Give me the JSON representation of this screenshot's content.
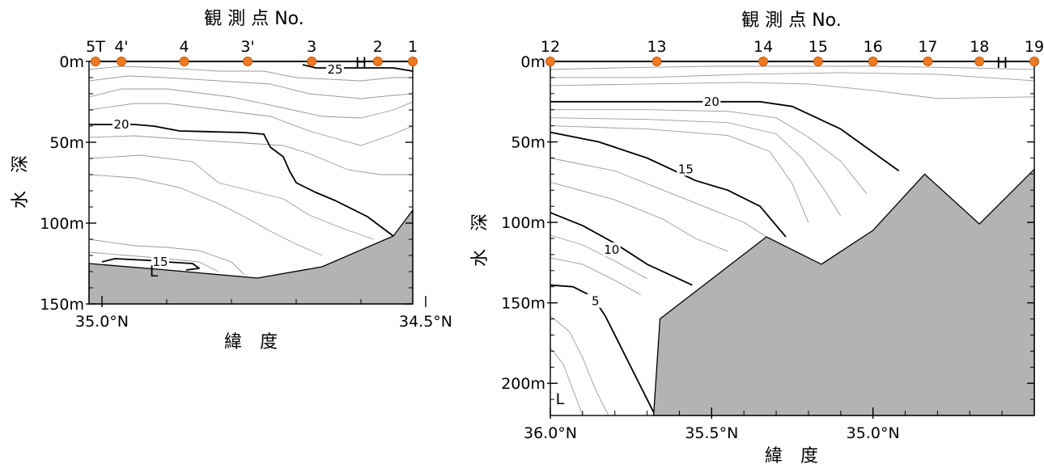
{
  "chart_data": [
    {
      "type": "contour-section",
      "top_axis_title": "観 測 点 No.",
      "xlabel": "緯　度",
      "ylabel": "水　深",
      "xlim": [
        35.02,
        34.52
      ],
      "ylim": [
        0,
        150
      ],
      "x_ticks": [
        {
          "value": 35.0,
          "label": "35.0°N"
        },
        {
          "value": 34.5,
          "label": "34.5°N"
        }
      ],
      "y_ticks": [
        {
          "value": 0,
          "label": "0m"
        },
        {
          "value": 50,
          "label": "50m"
        },
        {
          "value": 100,
          "label": "100m"
        },
        {
          "value": 150,
          "label": "150m"
        }
      ],
      "stations": [
        {
          "label": "5T",
          "lat": 35.01
        },
        {
          "label": "4'",
          "lat": 34.97
        },
        {
          "label": "4",
          "lat": 34.873
        },
        {
          "label": "3'",
          "lat": 34.775
        },
        {
          "label": "3",
          "lat": 34.676
        },
        {
          "label": "2",
          "lat": 34.574
        },
        {
          "label": "1",
          "lat": 34.52
        }
      ],
      "seabed": [
        [
          35.02,
          125
        ],
        [
          34.9,
          129
        ],
        [
          34.76,
          134
        ],
        [
          34.66,
          127
        ],
        [
          34.55,
          108
        ],
        [
          34.52,
          92
        ]
      ],
      "contours": [
        {
          "level": 25,
          "label": "25",
          "label_at": [
            34.64,
            5
          ],
          "points": [
            [
              34.69,
              2
            ],
            [
              34.67,
              4
            ],
            [
              34.6,
              4
            ],
            [
              34.55,
              4
            ],
            [
              34.52,
              6
            ]
          ]
        },
        {
          "level": 20,
          "label": "20",
          "label_at": [
            34.97,
            39
          ],
          "points": [
            [
              35.02,
              39
            ],
            [
              34.95,
              39
            ],
            [
              34.92,
              40
            ],
            [
              34.88,
              43
            ],
            [
              34.78,
              44
            ],
            [
              34.75,
              45
            ],
            [
              34.74,
              53
            ],
            [
              34.72,
              59
            ],
            [
              34.71,
              68
            ],
            [
              34.7,
              75
            ],
            [
              34.67,
              81
            ],
            [
              34.64,
              86
            ],
            [
              34.59,
              96
            ],
            [
              34.55,
              108
            ]
          ]
        },
        {
          "level": 15,
          "label": "15",
          "label_at": [
            34.91,
            124
          ],
          "points": [
            [
              35.0,
              124
            ],
            [
              34.98,
              122
            ],
            [
              34.93,
              123
            ],
            [
              34.9,
              124
            ],
            [
              34.86,
              125
            ],
            [
              34.85,
              128
            ],
            [
              34.87,
              129
            ]
          ]
        }
      ],
      "thin_contours": [
        [
          [
            35.02,
            5
          ],
          [
            34.97,
            3
          ],
          [
            34.9,
            4
          ],
          [
            34.82,
            6
          ],
          [
            34.75,
            6
          ],
          [
            34.7,
            10
          ],
          [
            34.6,
            12
          ],
          [
            34.55,
            10
          ],
          [
            34.52,
            10
          ]
        ],
        [
          [
            35.02,
            12
          ],
          [
            34.96,
            9
          ],
          [
            34.9,
            10
          ],
          [
            34.82,
            12
          ],
          [
            34.74,
            14
          ],
          [
            34.68,
            20
          ],
          [
            34.6,
            23
          ],
          [
            34.55,
            21
          ],
          [
            34.52,
            20
          ]
        ],
        [
          [
            35.02,
            22
          ],
          [
            34.97,
            17
          ],
          [
            34.9,
            17
          ],
          [
            34.8,
            22
          ],
          [
            34.74,
            27
          ],
          [
            34.66,
            34
          ],
          [
            34.6,
            35
          ],
          [
            34.55,
            30
          ],
          [
            34.52,
            25
          ]
        ],
        [
          [
            35.02,
            30
          ],
          [
            34.95,
            26
          ],
          [
            34.9,
            26
          ],
          [
            34.82,
            30
          ],
          [
            34.74,
            34
          ],
          [
            34.68,
            43
          ],
          [
            34.6,
            52
          ],
          [
            34.55,
            45
          ],
          [
            34.52,
            40
          ]
        ],
        [
          [
            35.02,
            47
          ],
          [
            34.95,
            46
          ],
          [
            34.88,
            48
          ],
          [
            34.8,
            50
          ],
          [
            34.72,
            52
          ],
          [
            34.68,
            57
          ],
          [
            34.62,
            67
          ],
          [
            34.57,
            70
          ],
          [
            34.52,
            70
          ]
        ],
        [
          [
            35.02,
            60
          ],
          [
            34.94,
            58
          ],
          [
            34.86,
            62
          ],
          [
            34.82,
            75
          ],
          [
            34.77,
            80
          ],
          [
            34.72,
            85
          ],
          [
            34.68,
            95
          ],
          [
            34.63,
            103
          ],
          [
            34.58,
            110
          ]
        ],
        [
          [
            35.02,
            70
          ],
          [
            34.95,
            72
          ],
          [
            34.88,
            78
          ],
          [
            34.82,
            88
          ],
          [
            34.78,
            96
          ],
          [
            34.74,
            105
          ],
          [
            34.7,
            113
          ],
          [
            34.66,
            120
          ]
        ],
        [
          [
            35.02,
            110
          ],
          [
            34.95,
            114
          ],
          [
            34.9,
            115
          ],
          [
            34.85,
            117
          ],
          [
            34.8,
            124
          ],
          [
            34.78,
            132
          ]
        ],
        [
          [
            35.02,
            118
          ],
          [
            34.96,
            120
          ],
          [
            34.9,
            122
          ],
          [
            34.85,
            124
          ],
          [
            34.82,
            130
          ]
        ]
      ],
      "markers": [
        {
          "text": "H",
          "lat": 34.6,
          "depth": 1
        },
        {
          "text": "L",
          "lat": 34.92,
          "depth": 130
        }
      ]
    },
    {
      "type": "contour-section",
      "top_axis_title": "観 測 点 No.",
      "xlabel": "緯　度",
      "ylabel": "水　深",
      "xlim": [
        36.0,
        34.5
      ],
      "ylim": [
        0,
        220
      ],
      "x_ticks": [
        {
          "value": 36.0,
          "label": "36.0°N"
        },
        {
          "value": 35.5,
          "label": "35.5°N"
        },
        {
          "value": 35.0,
          "label": "35.0°N"
        }
      ],
      "y_ticks": [
        {
          "value": 0,
          "label": "0m"
        },
        {
          "value": 50,
          "label": "50m"
        },
        {
          "value": 100,
          "label": "100m"
        },
        {
          "value": 150,
          "label": "150m"
        },
        {
          "value": 200,
          "label": "200m"
        }
      ],
      "stations": [
        {
          "label": "12",
          "lat": 36.0
        },
        {
          "label": "13",
          "lat": 35.67
        },
        {
          "label": "14",
          "lat": 35.34
        },
        {
          "label": "15",
          "lat": 35.17
        },
        {
          "label": "16",
          "lat": 35.0
        },
        {
          "label": "17",
          "lat": 34.83
        },
        {
          "label": "18",
          "lat": 34.67
        },
        {
          "label": "19",
          "lat": 34.5
        }
      ],
      "seabed": [
        [
          35.68,
          220
        ],
        [
          35.66,
          160
        ],
        [
          35.33,
          109
        ],
        [
          35.16,
          126
        ],
        [
          35.0,
          105
        ],
        [
          34.84,
          70
        ],
        [
          34.67,
          101
        ],
        [
          34.5,
          67
        ]
      ],
      "contours": [
        {
          "level": 20,
          "label": "20",
          "label_at": [
            35.5,
            25
          ],
          "points": [
            [
              36.0,
              25
            ],
            [
              35.7,
              25
            ],
            [
              35.5,
              25
            ],
            [
              35.35,
              25
            ],
            [
              35.25,
              28
            ],
            [
              35.1,
              42
            ],
            [
              34.92,
              68
            ]
          ]
        },
        {
          "level": 15,
          "label": "15",
          "label_at": [
            35.58,
            67
          ],
          "points": [
            [
              36.0,
              44
            ],
            [
              35.85,
              50
            ],
            [
              35.7,
              60
            ],
            [
              35.55,
              74
            ],
            [
              35.45,
              80
            ],
            [
              35.35,
              90
            ],
            [
              35.27,
              109
            ]
          ]
        },
        {
          "level": 10,
          "label": "10",
          "label_at": [
            35.81,
            117
          ],
          "points": [
            [
              36.0,
              94
            ],
            [
              35.9,
              102
            ],
            [
              35.8,
              113
            ],
            [
              35.7,
              126
            ],
            [
              35.56,
              139
            ]
          ]
        },
        {
          "level": 5,
          "label": "5",
          "label_at": [
            35.86,
            149
          ],
          "points": [
            [
              36.0,
              139
            ],
            [
              35.93,
              140
            ],
            [
              35.87,
              146
            ],
            [
              35.83,
              158
            ],
            [
              35.77,
              182
            ],
            [
              35.68,
              218
            ]
          ]
        }
      ],
      "thin_contours": [
        [
          [
            36.0,
            5
          ],
          [
            35.8,
            4
          ],
          [
            35.5,
            3
          ],
          [
            35.2,
            3
          ],
          [
            35.0,
            3
          ],
          [
            34.7,
            4
          ],
          [
            34.5,
            5
          ]
        ],
        [
          [
            36.0,
            10
          ],
          [
            35.7,
            10
          ],
          [
            35.4,
            8
          ],
          [
            35.1,
            7
          ],
          [
            34.8,
            8
          ],
          [
            34.5,
            12
          ]
        ],
        [
          [
            36.0,
            15
          ],
          [
            35.7,
            14
          ],
          [
            35.4,
            13
          ],
          [
            35.2,
            14
          ],
          [
            35.0,
            18
          ],
          [
            34.8,
            23
          ],
          [
            34.5,
            22
          ]
        ],
        [
          [
            36.0,
            30
          ],
          [
            35.7,
            30
          ],
          [
            35.45,
            31
          ],
          [
            35.3,
            35
          ],
          [
            35.2,
            47
          ],
          [
            35.1,
            62
          ],
          [
            35.02,
            82
          ]
        ],
        [
          [
            36.0,
            35
          ],
          [
            35.7,
            36
          ],
          [
            35.45,
            38
          ],
          [
            35.3,
            45
          ],
          [
            35.22,
            60
          ],
          [
            35.15,
            80
          ],
          [
            35.1,
            96
          ]
        ],
        [
          [
            36.0,
            40
          ],
          [
            35.7,
            42
          ],
          [
            35.45,
            46
          ],
          [
            35.32,
            56
          ],
          [
            35.25,
            76
          ],
          [
            35.2,
            100
          ]
        ],
        [
          [
            36.0,
            60
          ],
          [
            35.8,
            68
          ],
          [
            35.65,
            80
          ],
          [
            35.5,
            92
          ],
          [
            35.4,
            100
          ],
          [
            35.33,
            109
          ]
        ],
        [
          [
            36.0,
            75
          ],
          [
            35.8,
            86
          ],
          [
            35.65,
            98
          ],
          [
            35.55,
            110
          ],
          [
            35.45,
            118
          ]
        ],
        [
          [
            36.0,
            108
          ],
          [
            35.9,
            114
          ],
          [
            35.8,
            124
          ],
          [
            35.7,
            135
          ]
        ],
        [
          [
            36.0,
            122
          ],
          [
            35.9,
            126
          ],
          [
            35.8,
            136
          ],
          [
            35.72,
            145
          ]
        ],
        [
          [
            36.0,
            158
          ],
          [
            35.94,
            168
          ],
          [
            35.9,
            184
          ],
          [
            35.86,
            204
          ],
          [
            35.82,
            220
          ]
        ],
        [
          [
            36.0,
            178
          ],
          [
            35.96,
            188
          ],
          [
            35.93,
            204
          ],
          [
            35.9,
            220
          ]
        ]
      ],
      "markers": [
        {
          "text": "H",
          "lat": 34.6,
          "depth": 1
        },
        {
          "text": "L",
          "lat": 35.97,
          "depth": 210
        }
      ]
    }
  ]
}
